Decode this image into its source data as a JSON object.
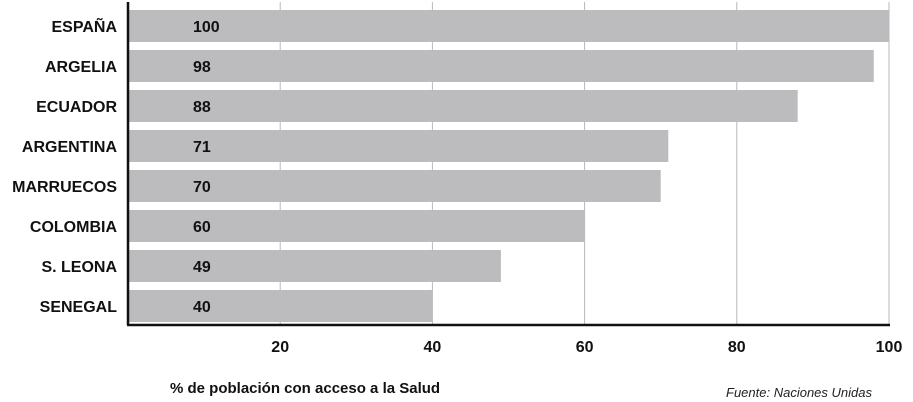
{
  "chart_data": {
    "type": "bar",
    "orientation": "horizontal",
    "categories": [
      "ESPAÑA",
      "ARGELIA",
      "ECUADOR",
      "ARGENTINA",
      "MARRUECOS",
      "COLOMBIA",
      "S. LEONA",
      "SENEGAL"
    ],
    "values": [
      100,
      98,
      88,
      71,
      70,
      60,
      49,
      40
    ],
    "value_labels": [
      "100",
      "98",
      "88",
      "71",
      "70",
      "60",
      "49",
      "40"
    ],
    "xlabel": "% de población con acceso a la Salud",
    "xticks": [
      20,
      40,
      60,
      80,
      100
    ],
    "xlim": [
      0,
      100
    ],
    "grid": true,
    "source": "Fuente: Naciones Unidas",
    "colors": {
      "bar": "#bcbcbf",
      "grid": "#b8b8b8",
      "axis": "#111111"
    }
  }
}
